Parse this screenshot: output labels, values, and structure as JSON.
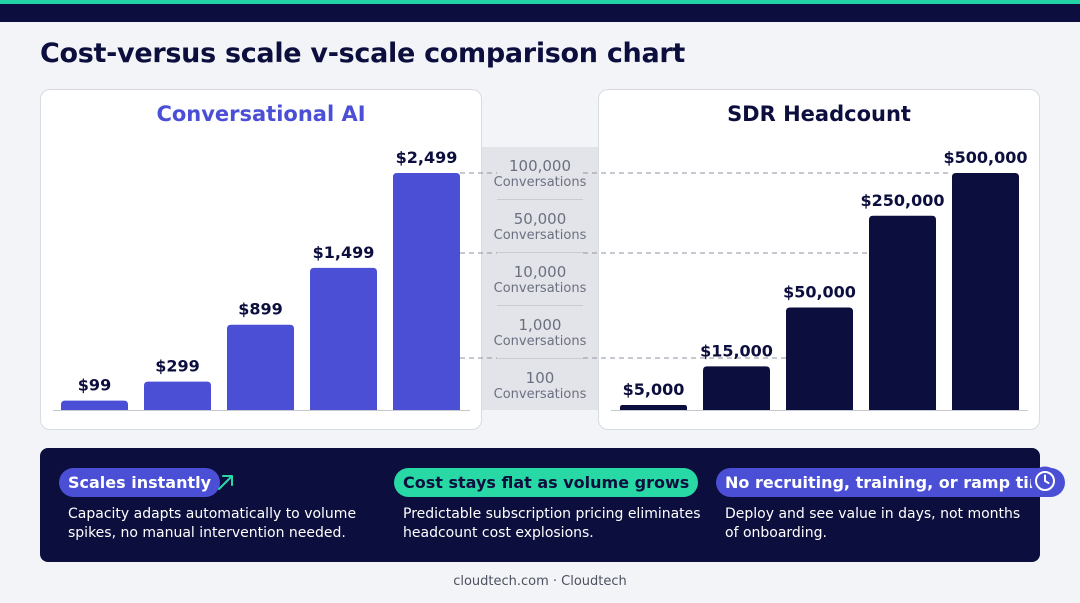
{
  "page_title": "Cost-versus scale v-scale comparison chart",
  "colors": {
    "navy": "#0c0e3e",
    "ai_bar": "#4a4fd6",
    "accent_green": "#22d3a6",
    "pill_green": "#28d9a5"
  },
  "chart_data": [
    {
      "type": "bar",
      "title": "Conversational AI",
      "categories": [
        "100 Conversations",
        "1,000 Conversations",
        "10,000 Conversations",
        "50,000 Conversations",
        "100,000 Conversations"
      ],
      "values": [
        99,
        299,
        899,
        1499,
        2499
      ],
      "value_labels": [
        "$99",
        "$299",
        "$899",
        "$1,499",
        "$2,499"
      ],
      "ylim": [
        0,
        2499
      ],
      "grid": false
    },
    {
      "type": "bar",
      "title": "SDR Headcount",
      "categories": [
        "100 Conversations",
        "1,000 Conversations",
        "10,000 Conversations",
        "50,000 Conversations",
        "100,000 Conversations"
      ],
      "values": [
        5000,
        15000,
        50000,
        250000,
        500000
      ],
      "value_labels": [
        "$5,000",
        "$15,000",
        "$50,000",
        "$250,000",
        "$500,000"
      ],
      "grid": false
    }
  ],
  "scale": [
    {
      "number": "100,000",
      "unit": "Conversations"
    },
    {
      "number": "50,000",
      "unit": "Conversations"
    },
    {
      "number": "10,000",
      "unit": "Conversations"
    },
    {
      "number": "1,000",
      "unit": "Conversations"
    },
    {
      "number": "100",
      "unit": "Conversations"
    }
  ],
  "features": [
    {
      "title": "Scales instantly",
      "icon": "arrow-up-right-icon",
      "desc_line1": "Capacity adapts automatically to volume",
      "desc_line2": "spikes, no manual intervention needed."
    },
    {
      "title": "Cost stays flat as volume grows",
      "desc_line1": "Predictable subscription pricing eliminates",
      "desc_line2": "headcount cost explosions."
    },
    {
      "title": "No recruiting, training, or ramp time",
      "icon": "clock-icon",
      "desc_line1": "Deploy and see value in days, not months",
      "desc_line2": "of onboarding."
    }
  ],
  "footer": "cloudtech.com · Cloudtech"
}
